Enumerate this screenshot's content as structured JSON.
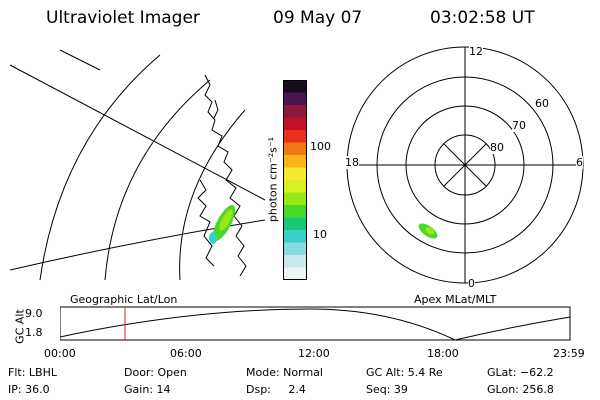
{
  "header": {
    "title": "Ultraviolet Imager",
    "date": "09 May 07",
    "time": "03:02:58 UT"
  },
  "colorbar": {
    "unit_label": "photon cm⁻²s⁻¹",
    "ticks": [
      "100",
      "10"
    ],
    "colors": [
      "#1a0a1e",
      "#4a1450",
      "#8a1a3c",
      "#c0102a",
      "#e8301c",
      "#f07818",
      "#f8b418",
      "#f8e830",
      "#d8f020",
      "#98e818",
      "#48d828",
      "#18c878",
      "#38d0c8",
      "#88dce0",
      "#c8e8ec",
      "#eef4f6"
    ]
  },
  "geo_panel": {
    "label": "Geographic Lat/Lon"
  },
  "polar_panel": {
    "label": "Apex MLat/MLT",
    "mlt_labels": {
      "top": "12",
      "left": "18",
      "right": "6",
      "bottom": "0"
    },
    "lat_labels": [
      "60",
      "70",
      "80"
    ]
  },
  "altitude_plot": {
    "ylabel": "GC Alt",
    "yticks": [
      "9.0",
      "1.8"
    ],
    "xticks": [
      "00:00",
      "06:00",
      "12:00",
      "18:00",
      "23:59"
    ],
    "marker_color": "#cc2222"
  },
  "info": {
    "flt": "Flt: LBHL",
    "ip": "IP: 36.0",
    "door": "Door: Open",
    "gain": "Gain: 14",
    "mode": "Mode: Normal",
    "dsp": "Dsp:     2.4",
    "gc_alt": "GC Alt: 5.4 Re",
    "seq": "Seq: 39",
    "glat": "GLat: −62.2",
    "glon": "GLon: 256.8"
  }
}
